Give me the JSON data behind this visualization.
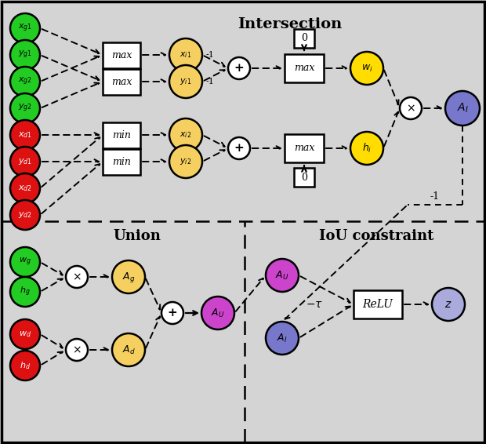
{
  "bg_color": "#d4d4d4",
  "title_intersection": "Intersection",
  "title_union": "Union",
  "title_iou": "IoU constraint",
  "green_color": "#22cc22",
  "red_color": "#dd1111",
  "yellow_color": "#ffdd00",
  "light_yellow": "#f5d060",
  "blue_color": "#7777cc",
  "purple_color": "#cc44cc",
  "white_color": "#ffffff",
  "light_blue_z": "#aaaadd"
}
